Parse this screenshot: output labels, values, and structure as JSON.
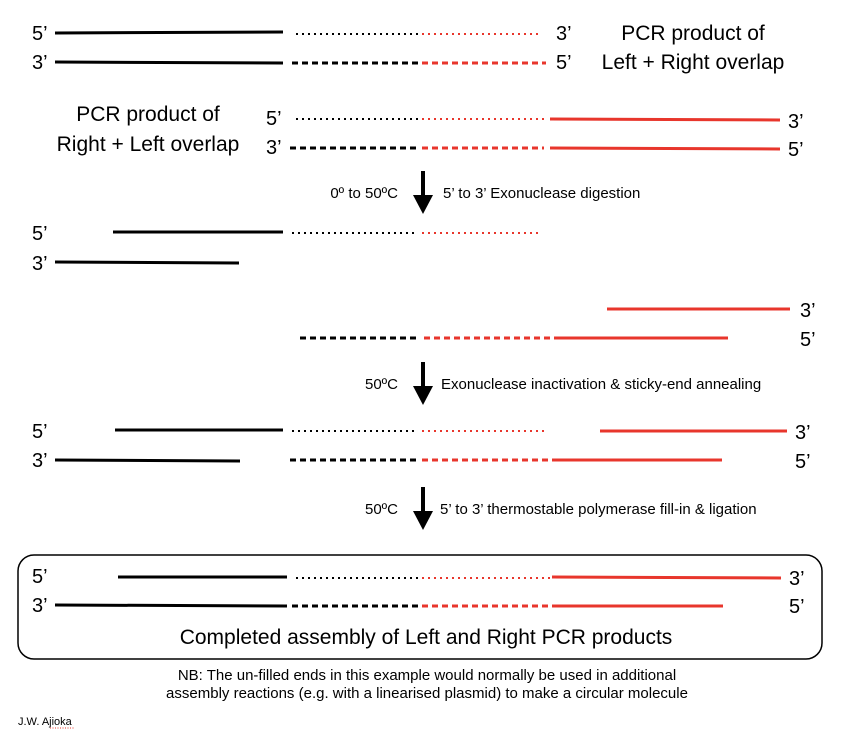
{
  "strand_ends": {
    "five_prime": "5’",
    "three_prime": "3’"
  },
  "products": {
    "left_title_line1": "PCR product of",
    "left_title_line2": "Left + Right overlap",
    "right_title_line1": "PCR product of",
    "right_title_line2": "Right + Left overlap"
  },
  "steps": [
    {
      "temperature": "0º to 50ºC",
      "description": "5’ to 3’ Exonuclease digestion"
    },
    {
      "temperature": "50ºC",
      "description": "Exonuclease inactivation & sticky-end annealing"
    },
    {
      "temperature": "50ºC",
      "description": "5’ to 3’ thermostable polymerase fill-in & ligation"
    }
  ],
  "result": {
    "caption": "Completed assembly of Left and Right PCR products"
  },
  "note": {
    "line1": "NB: The un-filled ends in this example would normally be used in additional",
    "line2": "assembly reactions (e.g. with a linearised plasmid)  to make a circular molecule"
  },
  "credit": "J.W. Ajioka",
  "colors": {
    "left_sequence": "#000000",
    "right_sequence": "#e8362c",
    "arrow": "#000000"
  }
}
